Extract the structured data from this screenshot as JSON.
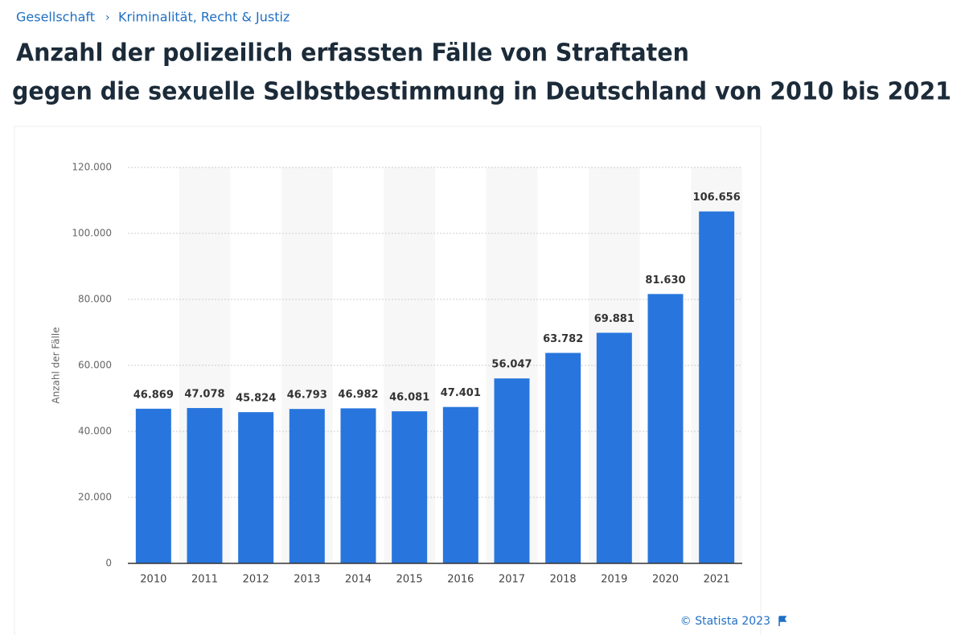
{
  "breadcrumb": [
    "Gesellschaft",
    "Kriminalität, Recht & Justiz"
  ],
  "chart_data": {
    "type": "bar",
    "title_lines": [
      "Anzahl der polizeilich erfassten Fälle von Straftaten",
      "gegen die sexuelle Selbstbestimmung  in Deutschland von 2010 bis 2021"
    ],
    "y_label": "Anzahl der Fälle",
    "categories": [
      "2010",
      "2011",
      "2012",
      "2013",
      "2014",
      "2015",
      "2016",
      "2017",
      "2018",
      "2019",
      "2020",
      "2021"
    ],
    "values": [
      46869,
      47078,
      45824,
      46793,
      46982,
      46081,
      47401,
      56047,
      63782,
      69881,
      81630,
      106656
    ],
    "value_labels": [
      "46.869",
      "47.078",
      "45.824",
      "46.793",
      "46.982",
      "46.081",
      "47.401",
      "56.047",
      "63.782",
      "69.881",
      "81.630",
      "106.656"
    ],
    "color": "#2876dd",
    "ylim": [
      0,
      120000
    ],
    "yticks": [
      0,
      {
        "value": 20000,
        "label": "20.000"
      },
      {
        "value": 40000,
        "label": "40.000"
      },
      {
        "value": 60000,
        "label": "60.000"
      },
      {
        "value": 80000,
        "label": "80.000"
      },
      {
        "value": 100000,
        "label": "100.000"
      },
      {
        "value": 120000,
        "label": "120.000"
      }
    ],
    "grid": true,
    "source": "© Statista 2023"
  }
}
